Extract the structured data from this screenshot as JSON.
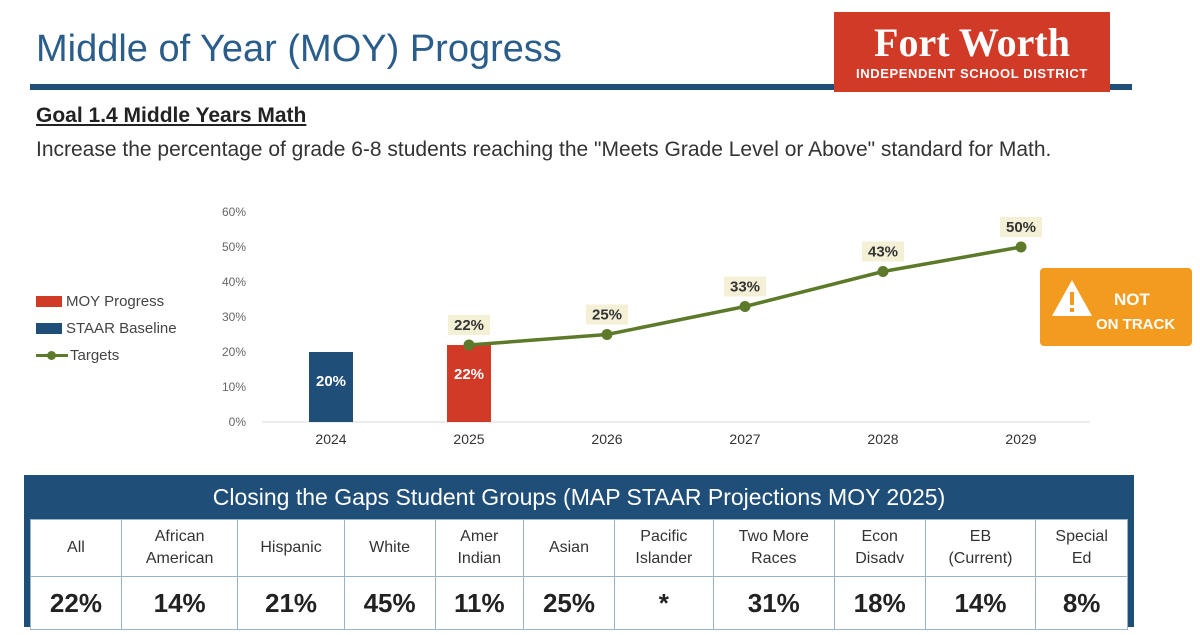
{
  "header": {
    "title": "Middle of Year (MOY) Progress",
    "logo": {
      "line1": "Fort Worth",
      "line2": "INDEPENDENT SCHOOL DISTRICT",
      "color": "#d03a27"
    }
  },
  "goal": {
    "heading": "Goal 1.4 Middle Years Math",
    "description": "Increase the percentage of grade 6-8 students reaching the \"Meets Grade Level or Above\" standard for Math."
  },
  "status_badge": {
    "icon": "warning-icon",
    "line1": "NOT",
    "line2": "ON TRACK",
    "color": "#f29b1e"
  },
  "chart_data": {
    "type": "bar",
    "categories": [
      "2024",
      "2025",
      "2026",
      "2027",
      "2028",
      "2029"
    ],
    "y_ticks": [
      "0%",
      "10%",
      "20%",
      "30%",
      "40%",
      "50%",
      "60%"
    ],
    "ylim": [
      0,
      60
    ],
    "grid": false,
    "legend_position": "left",
    "series": [
      {
        "name": "MOY Progress",
        "kind": "bar",
        "color": "#d03a27",
        "values": [
          null,
          22,
          null,
          null,
          null,
          null
        ],
        "labels": [
          null,
          "22%",
          null,
          null,
          null,
          null
        ]
      },
      {
        "name": "STAAR Baseline",
        "kind": "bar",
        "color": "#1f4e79",
        "values": [
          20,
          null,
          null,
          null,
          null,
          null
        ],
        "labels": [
          "20%",
          null,
          null,
          null,
          null,
          null
        ]
      },
      {
        "name": "Targets",
        "kind": "line",
        "color": "#5c7a29",
        "values": [
          null,
          22,
          25,
          33,
          43,
          50
        ],
        "labels": [
          null,
          "22%",
          "25%",
          "33%",
          "43%",
          "50%"
        ]
      }
    ]
  },
  "gaps_table": {
    "title": "Closing the Gaps Student Groups (MAP STAAR Projections MOY 2025)",
    "columns": [
      {
        "line1": "All",
        "line2": "",
        "value": "22%"
      },
      {
        "line1": "African",
        "line2": "American",
        "value": "14%"
      },
      {
        "line1": "Hispanic",
        "line2": "",
        "value": "21%"
      },
      {
        "line1": "White",
        "line2": "",
        "value": "45%"
      },
      {
        "line1": "Amer",
        "line2": "Indian",
        "value": "11%"
      },
      {
        "line1": "Asian",
        "line2": "",
        "value": "25%"
      },
      {
        "line1": "Pacific",
        "line2": "Islander",
        "value": "*"
      },
      {
        "line1": "Two More",
        "line2": "Races",
        "value": "31%"
      },
      {
        "line1": "Econ",
        "line2": "Disadv",
        "value": "18%"
      },
      {
        "line1": "EB",
        "line2": "(Current)",
        "value": "14%"
      },
      {
        "line1": "Special",
        "line2": "Ed",
        "value": "8%"
      }
    ]
  }
}
